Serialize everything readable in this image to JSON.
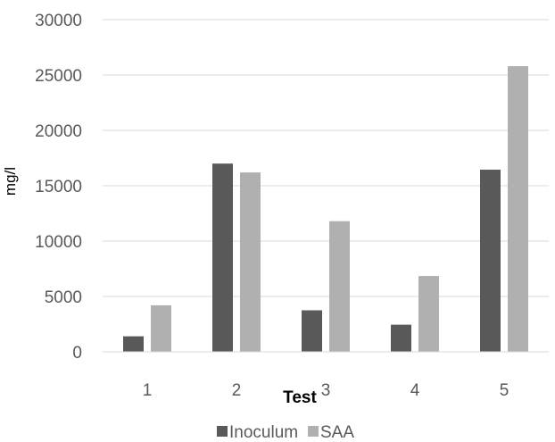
{
  "chart_data": {
    "type": "bar",
    "categories": [
      "1",
      "2",
      "3",
      "4",
      "5"
    ],
    "series": [
      {
        "name": "Inoculum",
        "values": [
          1400,
          17000,
          3750,
          2450,
          16450
        ],
        "color": "#595959"
      },
      {
        "name": "SAA",
        "values": [
          4200,
          16200,
          11800,
          6850,
          25800
        ],
        "color": "#b0b0b0"
      }
    ],
    "xlabel": "Test",
    "ylabel": "mg/l",
    "ylim": [
      0,
      30000
    ],
    "yticks": [
      0,
      5000,
      10000,
      15000,
      20000,
      25000,
      30000
    ],
    "grid": true,
    "legend_position": "bottom"
  }
}
